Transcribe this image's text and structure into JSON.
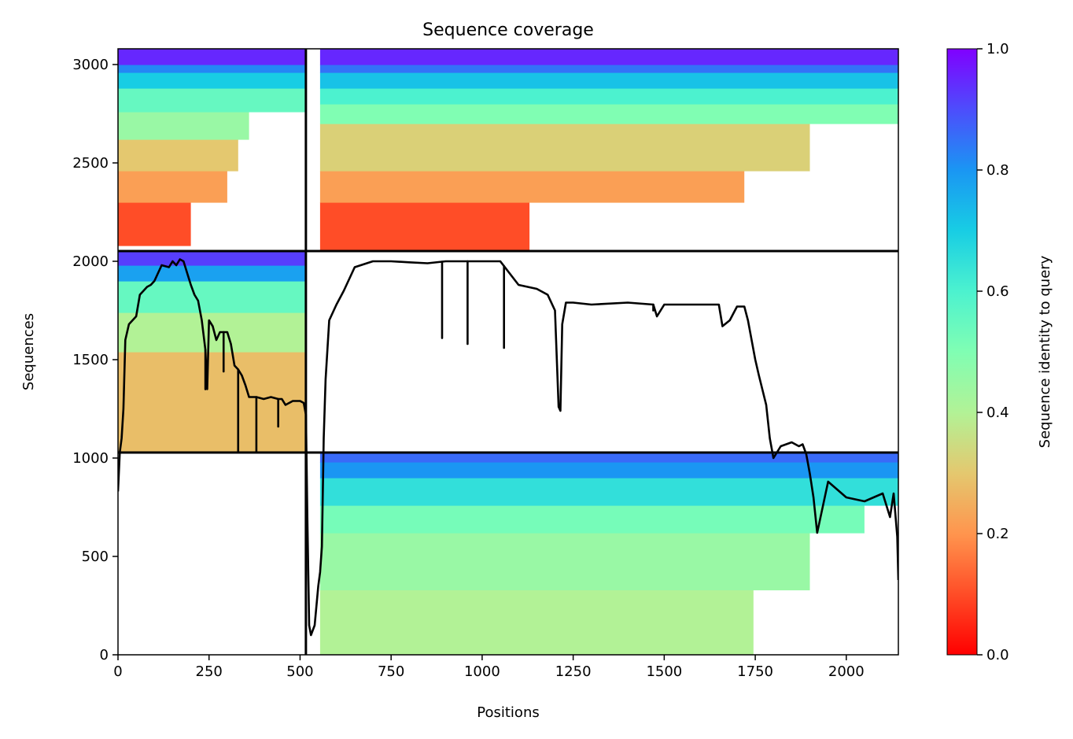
{
  "chart_data": {
    "type": "heatmap",
    "title": "Sequence coverage",
    "xlabel": "Positions",
    "ylabel": "Sequences",
    "xlim": [
      0,
      2143
    ],
    "ylim": [
      0,
      3080
    ],
    "x_ticks": [
      "0",
      "250",
      "500",
      "750",
      "1000",
      "1250",
      "1500",
      "1750",
      "2000"
    ],
    "y_ticks": [
      "0",
      "500",
      "1000",
      "1500",
      "2000",
      "2500",
      "3000"
    ],
    "colorbar": {
      "label": "Sequence identity to query",
      "colormap": "rainbow_r",
      "range": [
        0,
        1
      ],
      "ticks": [
        "0.0",
        "0.2",
        "0.4",
        "0.6",
        "0.8",
        "1.0"
      ]
    },
    "chain_boundaries": {
      "x": [
        516
      ],
      "y": [
        1028,
        2052
      ]
    },
    "blocks": [
      {
        "name": "block-bottom-right",
        "x": [
          555,
          2143
        ],
        "y": [
          0,
          1028
        ],
        "bands": [
          {
            "y": [
              0,
              330
            ],
            "x_end": 1745,
            "identity": 0.4
          },
          {
            "y": [
              330,
              620
            ],
            "x_end": 1900,
            "identity": 0.45
          },
          {
            "y": [
              620,
              760
            ],
            "x_end": 2050,
            "identity": 0.52
          },
          {
            "y": [
              760,
              900
            ],
            "x_end": 2143,
            "identity": 0.65
          },
          {
            "y": [
              900,
              980
            ],
            "x_end": 2143,
            "identity": 0.8
          },
          {
            "y": [
              980,
              1028
            ],
            "x_end": 2143,
            "identity": 0.86
          }
        ]
      },
      {
        "name": "block-middle-left",
        "x": [
          0,
          516
        ],
        "y": [
          1028,
          2052
        ],
        "bands": [
          {
            "y": [
              1028,
              1540
            ],
            "x_end": 516,
            "identity": 0.28
          },
          {
            "y": [
              1540,
              1740
            ],
            "x_end": 516,
            "identity": 0.4
          },
          {
            "y": [
              1740,
              1900
            ],
            "x_end": 516,
            "identity": 0.55
          },
          {
            "y": [
              1900,
              1980
            ],
            "x_end": 516,
            "identity": 0.78
          },
          {
            "y": [
              1980,
              2052
            ],
            "x_end": 516,
            "identity": 0.92
          }
        ]
      },
      {
        "name": "block-top-left",
        "x": [
          0,
          516
        ],
        "y": [
          2052,
          3080
        ],
        "bands": [
          {
            "y": [
              2080,
              2300
            ],
            "x_end": 200,
            "identity": 0.1
          },
          {
            "y": [
              2300,
              2460
            ],
            "x_end": 300,
            "identity": 0.22
          },
          {
            "y": [
              2460,
              2620
            ],
            "x_end": 330,
            "identity": 0.3
          },
          {
            "y": [
              2620,
              2760
            ],
            "x_end": 360,
            "identity": 0.45
          },
          {
            "y": [
              2760,
              2880
            ],
            "x_end": 516,
            "identity": 0.55
          },
          {
            "y": [
              2880,
              2960
            ],
            "x_end": 516,
            "identity": 0.7
          },
          {
            "y": [
              2960,
              3000
            ],
            "x_end": 516,
            "identity": 0.82
          },
          {
            "y": [
              3000,
              3080
            ],
            "x_end": 516,
            "identity": 0.95
          }
        ]
      },
      {
        "name": "block-top-right",
        "x": [
          555,
          2143
        ],
        "y": [
          2052,
          3080
        ],
        "bands": [
          {
            "y": [
              2052,
              2300
            ],
            "x_end": 1130,
            "identity": 0.1
          },
          {
            "y": [
              2300,
              2460
            ],
            "x_end": 1720,
            "identity": 0.22
          },
          {
            "y": [
              2460,
              2700
            ],
            "x_end": 1900,
            "identity": 0.32
          },
          {
            "y": [
              2700,
              2800
            ],
            "x_end": 2143,
            "identity": 0.5
          },
          {
            "y": [
              2800,
              2880
            ],
            "x_end": 2143,
            "identity": 0.6
          },
          {
            "y": [
              2880,
              2960
            ],
            "x_end": 2143,
            "identity": 0.72
          },
          {
            "y": [
              2960,
              3000
            ],
            "x_end": 2143,
            "identity": 0.85
          },
          {
            "y": [
              3000,
              3080
            ],
            "x_end": 2143,
            "identity": 0.95
          }
        ]
      }
    ],
    "coverage_line": {
      "color": "#000000",
      "x": [
        0,
        5,
        10,
        15,
        20,
        30,
        40,
        50,
        60,
        70,
        80,
        90,
        100,
        120,
        140,
        150,
        160,
        170,
        180,
        200,
        210,
        220,
        230,
        240,
        245,
        250,
        260,
        270,
        280,
        300,
        310,
        320,
        330,
        340,
        350,
        360,
        380,
        400,
        420,
        440,
        450,
        460,
        480,
        500,
        510,
        516,
        520,
        525,
        530,
        540,
        550,
        555,
        560,
        565,
        570,
        580,
        600,
        620,
        650,
        700,
        750,
        800,
        850,
        900,
        950,
        1000,
        1050,
        1100,
        1150,
        1180,
        1200,
        1210,
        1215,
        1220,
        1230,
        1250,
        1300,
        1400,
        1470,
        1480,
        1500,
        1600,
        1650,
        1660,
        1680,
        1700,
        1720,
        1730,
        1750,
        1760,
        1780,
        1790,
        1800,
        1820,
        1850,
        1870,
        1880,
        1890,
        1900,
        1910,
        1920,
        1950,
        2000,
        2050,
        2100,
        2120,
        2130,
        2140,
        2143
      ],
      "y": [
        830,
        1030,
        1100,
        1250,
        1600,
        1680,
        1700,
        1720,
        1830,
        1850,
        1870,
        1880,
        1900,
        1980,
        1970,
        2000,
        1980,
        2010,
        2000,
        1880,
        1830,
        1800,
        1700,
        1550,
        1350,
        1700,
        1670,
        1600,
        1640,
        1640,
        1580,
        1470,
        1450,
        1420,
        1370,
        1310,
        1310,
        1300,
        1310,
        1300,
        1300,
        1270,
        1290,
        1290,
        1280,
        1220,
        700,
        150,
        100,
        150,
        350,
        420,
        550,
        1100,
        1400,
        1700,
        1780,
        1850,
        1970,
        2000,
        2000,
        1995,
        1990,
        2000,
        2000,
        2000,
        2000,
        1880,
        1860,
        1830,
        1750,
        1260,
        1240,
        1680,
        1790,
        1790,
        1780,
        1790,
        1780,
        1720,
        1780,
        1780,
        1780,
        1670,
        1700,
        1770,
        1770,
        1700,
        1500,
        1420,
        1270,
        1100,
        1000,
        1060,
        1080,
        1060,
        1070,
        1020,
        920,
        800,
        620,
        880,
        800,
        780,
        820,
        700,
        820,
        600,
        380
      ]
    },
    "coverage_dips": [
      {
        "x": 240,
        "y": 1350
      },
      {
        "x": 290,
        "y": 1440
      },
      {
        "x": 330,
        "y": 1030
      },
      {
        "x": 380,
        "y": 1030
      },
      {
        "x": 440,
        "y": 1160
      },
      {
        "x": 890,
        "y": 1610
      },
      {
        "x": 960,
        "y": 1580
      },
      {
        "x": 1060,
        "y": 1560
      },
      {
        "x": 1470,
        "y": 1750
      }
    ]
  }
}
